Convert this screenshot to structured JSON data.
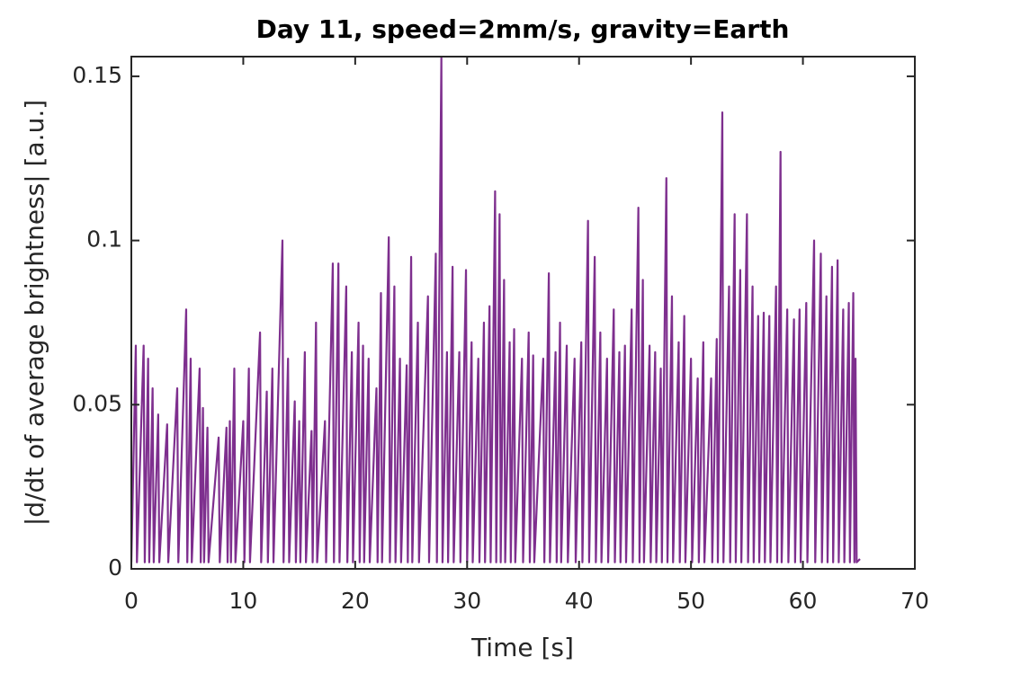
{
  "chart_data": {
    "type": "line",
    "title": "Day 11, speed=2mm/s, gravity=Earth",
    "x_label": "Time [s]",
    "y_label": "|d/dt of average brightness| [a.u.]",
    "color": "#7e2f8e",
    "xlim": [
      0,
      70
    ],
    "xticks": [
      0,
      10,
      20,
      30,
      40,
      50,
      60,
      70
    ],
    "ylim": [
      0,
      0.156
    ],
    "yticks": [
      0,
      0.05,
      0.1,
      0.15
    ],
    "x": [
      0,
      0.4,
      0.5,
      1.1,
      1.2,
      1.5,
      1.6,
      1.9,
      2.0,
      2.4,
      2.5,
      3.2,
      3.3,
      4.1,
      4.2,
      4.9,
      5.0,
      5.3,
      5.4,
      6.1,
      6.2,
      6.4,
      6.5,
      6.8,
      6.9,
      7.8,
      7.9,
      8.5,
      8.6,
      8.8,
      8.9,
      9.2,
      9.3,
      10.0,
      10.1,
      10.5,
      10.6,
      11.5,
      11.6,
      12.1,
      12.2,
      12.6,
      12.7,
      13.5,
      13.6,
      14.0,
      14.1,
      14.6,
      14.7,
      15.0,
      15.1,
      15.5,
      15.6,
      16.1,
      16.2,
      16.5,
      16.6,
      17.3,
      17.4,
      18.0,
      18.1,
      18.5,
      18.6,
      19.2,
      19.3,
      19.7,
      19.8,
      20.3,
      20.4,
      20.7,
      20.8,
      21.2,
      21.3,
      21.9,
      22.0,
      22.3,
      22.4,
      23.0,
      23.1,
      23.5,
      23.6,
      24.0,
      24.1,
      24.6,
      24.7,
      25.0,
      25.1,
      25.6,
      25.7,
      26.5,
      26.6,
      27.2,
      27.3,
      27.7,
      27.8,
      28.2,
      28.3,
      28.7,
      28.8,
      29.3,
      29.4,
      29.9,
      30.0,
      30.4,
      30.5,
      31.0,
      31.1,
      31.5,
      31.6,
      32.0,
      32.1,
      32.5,
      32.6,
      32.9,
      33.0,
      33.3,
      33.4,
      33.8,
      33.9,
      34.2,
      34.3,
      34.9,
      35.0,
      35.5,
      35.6,
      35.9,
      36.0,
      36.8,
      36.9,
      37.3,
      37.4,
      37.9,
      38.0,
      38.3,
      38.4,
      38.9,
      39.0,
      39.6,
      39.7,
      40.2,
      40.3,
      40.8,
      40.9,
      41.4,
      41.5,
      41.9,
      42.0,
      42.5,
      42.6,
      43.1,
      43.2,
      43.6,
      43.7,
      44.1,
      44.2,
      44.7,
      44.8,
      45.3,
      45.4,
      45.7,
      45.8,
      46.3,
      46.4,
      46.8,
      46.9,
      47.3,
      47.4,
      47.8,
      47.9,
      48.3,
      48.4,
      48.9,
      49.0,
      49.4,
      49.5,
      50.0,
      50.1,
      50.6,
      50.7,
      51.1,
      51.2,
      51.8,
      51.9,
      52.3,
      52.4,
      52.8,
      52.9,
      53.4,
      53.5,
      53.9,
      54.0,
      54.4,
      54.5,
      55.0,
      55.1,
      55.5,
      55.6,
      56.0,
      56.1,
      56.5,
      56.6,
      57.0,
      57.1,
      57.6,
      57.7,
      58.0,
      58.1,
      58.6,
      58.7,
      59.2,
      59.3,
      59.7,
      59.8,
      60.3,
      60.4,
      61.0,
      61.1,
      61.6,
      61.7,
      62.1,
      62.2,
      62.6,
      62.7,
      63.1,
      63.2,
      63.6,
      63.7,
      64.1,
      64.2,
      64.5,
      64.6,
      64.7,
      64.8,
      65.1
    ],
    "values": [
      0.002,
      0.068,
      0.002,
      0.068,
      0.002,
      0.064,
      0.002,
      0.055,
      0.002,
      0.047,
      0.002,
      0.044,
      0.002,
      0.055,
      0.002,
      0.079,
      0.002,
      0.064,
      0.002,
      0.061,
      0.002,
      0.049,
      0.002,
      0.043,
      0.002,
      0.04,
      0.002,
      0.043,
      0.002,
      0.045,
      0.002,
      0.061,
      0.002,
      0.045,
      0.002,
      0.061,
      0.002,
      0.072,
      0.002,
      0.054,
      0.002,
      0.061,
      0.002,
      0.1,
      0.002,
      0.064,
      0.002,
      0.051,
      0.002,
      0.045,
      0.002,
      0.066,
      0.002,
      0.042,
      0.002,
      0.075,
      0.002,
      0.045,
      0.002,
      0.093,
      0.002,
      0.093,
      0.002,
      0.086,
      0.002,
      0.066,
      0.002,
      0.075,
      0.002,
      0.068,
      0.002,
      0.064,
      0.002,
      0.055,
      0.002,
      0.084,
      0.002,
      0.101,
      0.002,
      0.086,
      0.002,
      0.064,
      0.002,
      0.062,
      0.002,
      0.095,
      0.002,
      0.075,
      0.002,
      0.083,
      0.002,
      0.096,
      0.002,
      0.156,
      0.002,
      0.066,
      0.002,
      0.092,
      0.002,
      0.066,
      0.002,
      0.091,
      0.002,
      0.069,
      0.002,
      0.064,
      0.002,
      0.075,
      0.002,
      0.08,
      0.002,
      0.115,
      0.002,
      0.108,
      0.002,
      0.088,
      0.002,
      0.069,
      0.002,
      0.073,
      0.002,
      0.064,
      0.002,
      0.072,
      0.002,
      0.065,
      0.002,
      0.064,
      0.002,
      0.09,
      0.002,
      0.066,
      0.002,
      0.075,
      0.002,
      0.068,
      0.002,
      0.064,
      0.002,
      0.069,
      0.002,
      0.106,
      0.002,
      0.095,
      0.002,
      0.072,
      0.002,
      0.064,
      0.002,
      0.079,
      0.002,
      0.066,
      0.002,
      0.068,
      0.002,
      0.079,
      0.002,
      0.11,
      0.002,
      0.088,
      0.002,
      0.068,
      0.002,
      0.066,
      0.002,
      0.061,
      0.002,
      0.119,
      0.002,
      0.083,
      0.002,
      0.069,
      0.002,
      0.077,
      0.002,
      0.064,
      0.002,
      0.058,
      0.002,
      0.069,
      0.002,
      0.058,
      0.002,
      0.07,
      0.002,
      0.139,
      0.002,
      0.086,
      0.002,
      0.108,
      0.002,
      0.091,
      0.002,
      0.108,
      0.002,
      0.086,
      0.002,
      0.077,
      0.002,
      0.078,
      0.002,
      0.077,
      0.002,
      0.086,
      0.002,
      0.127,
      0.002,
      0.079,
      0.002,
      0.076,
      0.002,
      0.079,
      0.002,
      0.081,
      0.002,
      0.1,
      0.002,
      0.096,
      0.002,
      0.083,
      0.002,
      0.092,
      0.002,
      0.094,
      0.002,
      0.079,
      0.002,
      0.081,
      0.002,
      0.084,
      0.002,
      0.064,
      0.002,
      0.003
    ]
  }
}
